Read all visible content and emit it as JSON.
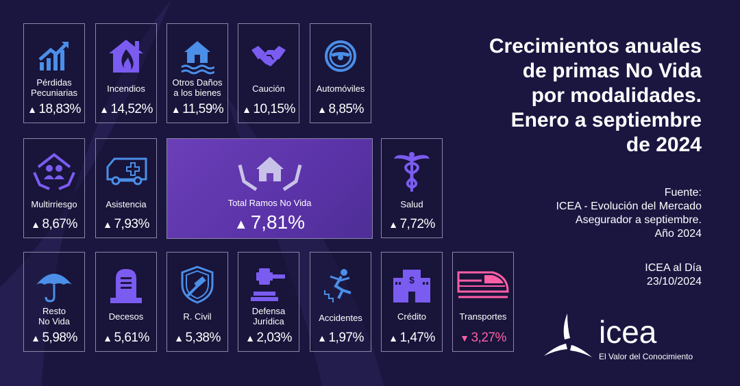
{
  "title_lines": [
    "Crecimientos anuales",
    "de primas No Vida",
    "por modalidades.",
    "Enero a septiembre",
    "de 2024"
  ],
  "source": {
    "label": "Fuente:",
    "lines": [
      "ICEA - Evolución del Mercado",
      "Asegurador a septiembre.",
      "Año 2024"
    ]
  },
  "date": {
    "lines": [
      "ICEA al Día",
      "23/10/2024"
    ]
  },
  "logo": {
    "word": "icea",
    "tagline": "El Valor del Conocimiento"
  },
  "colors": {
    "background": "#1b1640",
    "tile_border": "#8c87a8",
    "icon_purple": "#7b5cf0",
    "icon_blue": "#4b8fe8",
    "negative": "#ff5fa5",
    "highlight": "#6b3fb8"
  },
  "total": {
    "label": "Total Ramos No Vida",
    "arrow": "▲",
    "value": "7,81%",
    "icon": "house-in-hands-icon"
  },
  "tiles": [
    {
      "label_lines": [
        "Pérdidas",
        "Pecuniarias"
      ],
      "arrow": "▲",
      "value": "18,83%",
      "icon": "growth-chart-icon"
    },
    {
      "label_lines": [
        "Incendios"
      ],
      "arrow": "▲",
      "value": "14,52%",
      "icon": "house-fire-icon"
    },
    {
      "label_lines": [
        "Otros Daños",
        "a los bienes"
      ],
      "arrow": "▲",
      "value": "11,59%",
      "icon": "house-flood-icon"
    },
    {
      "label_lines": [
        "Caución"
      ],
      "arrow": "▲",
      "value": "10,15%",
      "icon": "handshake-icon"
    },
    {
      "label_lines": [
        "Automóviles"
      ],
      "arrow": "▲",
      "value": "8,85%",
      "icon": "steering-wheel-icon"
    },
    {
      "label_lines": [
        "Multirriesgo"
      ],
      "arrow": "▲",
      "value": "8,67%",
      "icon": "family-in-hands-icon"
    },
    {
      "label_lines": [
        "Asistencia"
      ],
      "arrow": "▲",
      "value": "7,93%",
      "icon": "ambulance-icon"
    },
    {
      "label_lines": [
        "Salud"
      ],
      "arrow": "▲",
      "value": "7,72%",
      "icon": "caduceus-icon"
    },
    {
      "label_lines": [
        "Resto",
        "No Vida"
      ],
      "arrow": "▲",
      "value": "5,98%",
      "icon": "umbrella-icon"
    },
    {
      "label_lines": [
        "Decesos"
      ],
      "arrow": "▲",
      "value": "5,61%",
      "icon": "tombstone-icon"
    },
    {
      "label_lines": [
        "R. Civil"
      ],
      "arrow": "▲",
      "value": "5,38%",
      "icon": "shield-gavel-icon"
    },
    {
      "label_lines": [
        "Defensa",
        "Jurídica"
      ],
      "arrow": "▲",
      "value": "2,03%",
      "icon": "gavel-icon"
    },
    {
      "label_lines": [
        "Accidentes"
      ],
      "arrow": "▲",
      "value": "1,97%",
      "icon": "falling-person-icon"
    },
    {
      "label_lines": [
        "Crédito"
      ],
      "arrow": "▲",
      "value": "1,47%",
      "icon": "bank-building-icon"
    },
    {
      "label_lines": [
        "Transportes"
      ],
      "arrow": "▼",
      "value": "3,27%",
      "icon": "train-icon",
      "negative": true
    }
  ]
}
